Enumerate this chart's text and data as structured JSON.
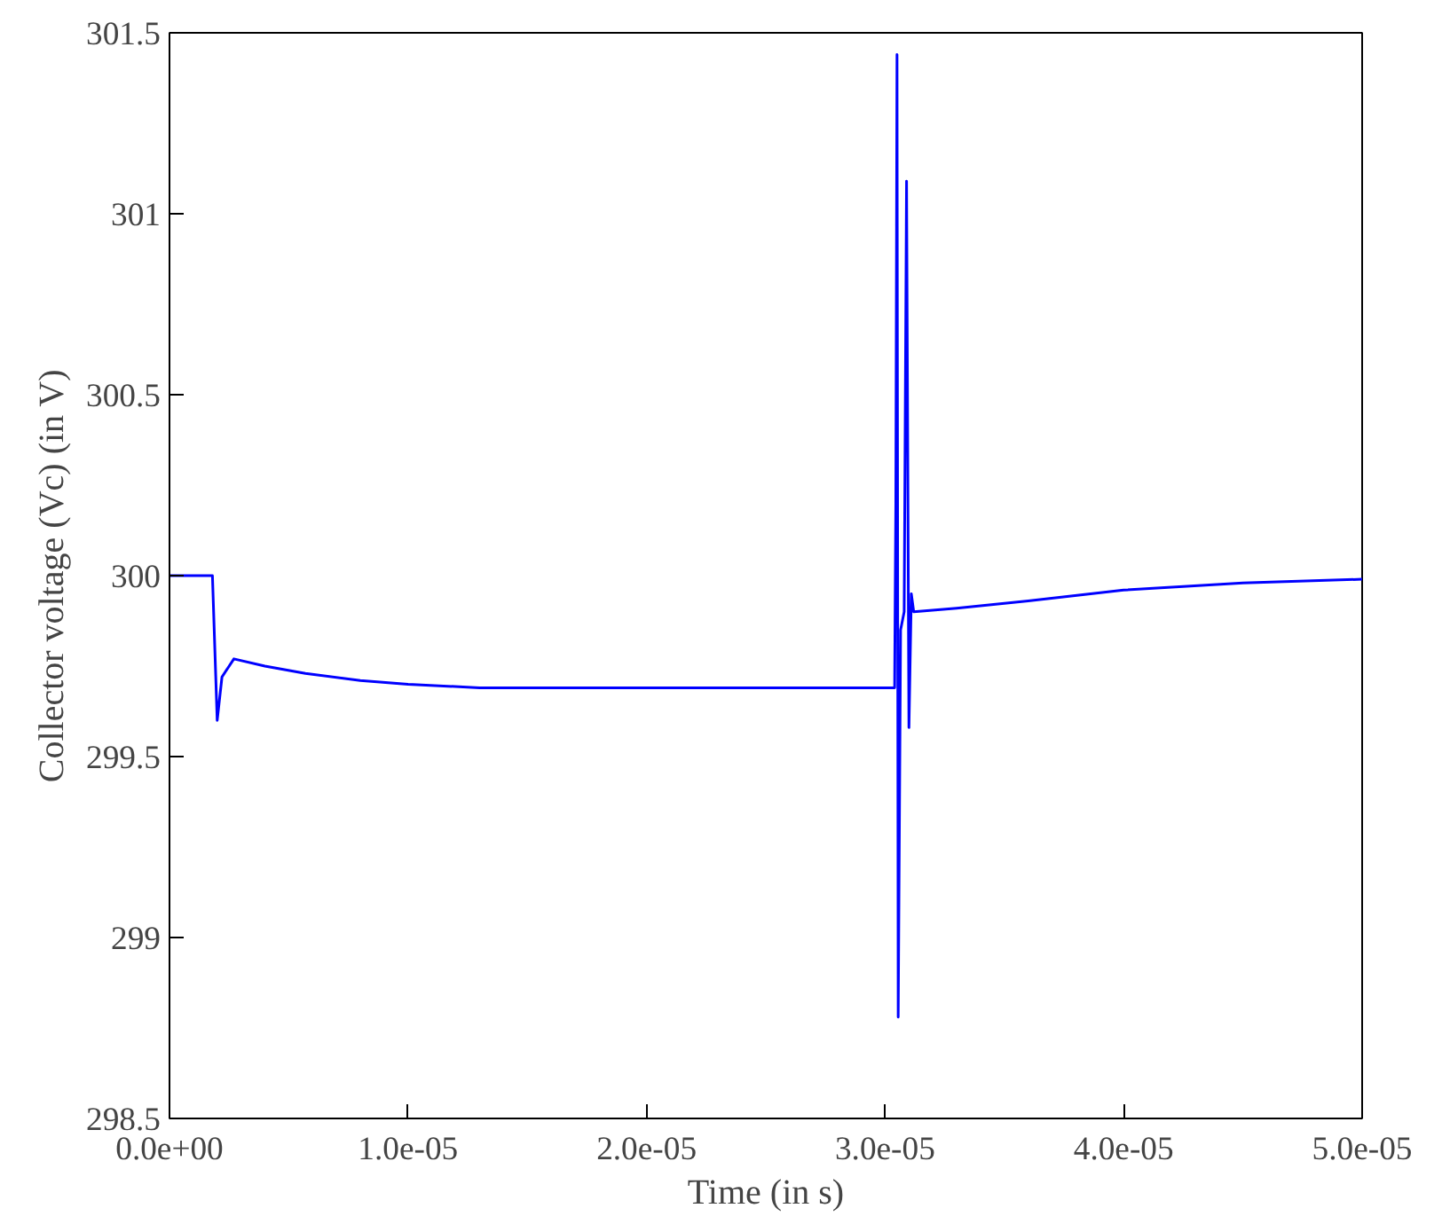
{
  "chart_data": {
    "type": "line",
    "xlabel": "Time (in s)",
    "ylabel": "Collector voltage (Vc) (in V)",
    "x": [
      0,
      1.8e-06,
      2e-06,
      2.2e-06,
      2.7e-06,
      4e-06,
      5.7e-06,
      8e-06,
      1e-05,
      1.3e-05,
      3.03e-05,
      3.04e-05,
      3.045e-05,
      3.05e-05,
      3.055e-05,
      3.065e-05,
      3.08e-05,
      3.09e-05,
      3.1e-05,
      3.11e-05,
      3.12e-05,
      3.3e-05,
      3.6e-05,
      4e-05,
      4.5e-05,
      5e-05
    ],
    "series": [
      {
        "color": "#0000ff",
        "values": [
          300,
          300,
          299.6,
          299.72,
          299.77,
          299.75,
          299.73,
          299.71,
          299.7,
          299.69,
          299.69,
          299.69,
          300.2,
          301.44,
          298.78,
          299.85,
          299.9,
          301.09,
          299.58,
          299.95,
          299.9,
          299.91,
          299.93,
          299.96,
          299.98,
          299.99
        ]
      }
    ],
    "xlim": [
      0,
      5e-05
    ],
    "ylim": [
      298.5,
      301.5
    ],
    "xticks": [
      {
        "value": 0,
        "label": "0.0e+00"
      },
      {
        "value": 1e-05,
        "label": "1.0e-05"
      },
      {
        "value": 2e-05,
        "label": "2.0e-05"
      },
      {
        "value": 3e-05,
        "label": "3.0e-05"
      },
      {
        "value": 4e-05,
        "label": "4.0e-05"
      },
      {
        "value": 5e-05,
        "label": "5.0e-05"
      }
    ],
    "yticks": [
      298.5,
      299,
      299.5,
      300,
      300.5,
      301,
      301.5
    ],
    "grid": false,
    "line_style": "solid"
  }
}
